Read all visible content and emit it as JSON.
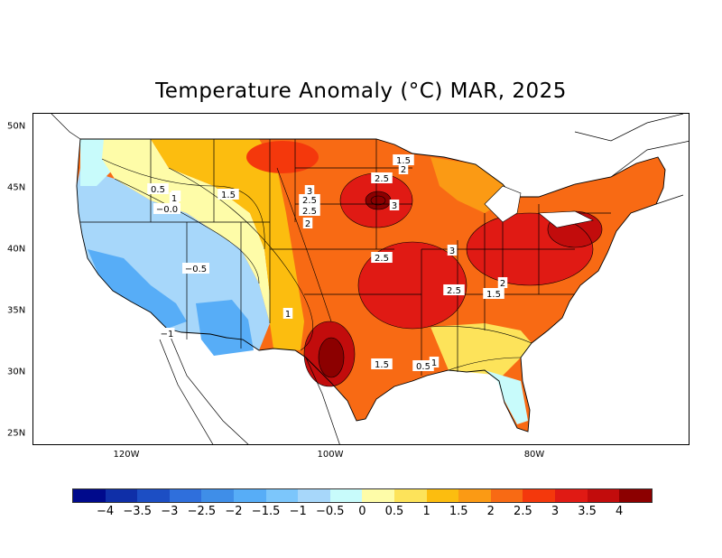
{
  "title": "Temperature Anomaly (°C) MAR, 2025",
  "lat_labels": [
    "50N",
    "45N",
    "40N",
    "35N",
    "30N",
    "25N"
  ],
  "lon_labels": [
    "120W",
    "100W",
    "80W"
  ],
  "colorbar": {
    "colors": [
      "#000a8c",
      "#0f2fa8",
      "#1c4ec4",
      "#2f6fdc",
      "#3f8ee8",
      "#57adf7",
      "#7cc6fb",
      "#a7d7fa",
      "#c8fbfb",
      "#fefca8",
      "#fde35a",
      "#fcbd0f",
      "#fb9a14",
      "#f86a14",
      "#f4380c",
      "#e01a14",
      "#c20c0c",
      "#8c0000"
    ],
    "labels": [
      "−4",
      "−3.5",
      "−3",
      "−2.5",
      "−2",
      "−1.5",
      "−1",
      "−0.5",
      "0",
      "0.5",
      "1",
      "1.5",
      "2",
      "2.5",
      "3",
      "3.5",
      "4"
    ]
  },
  "contour_labels": [
    {
      "text": "1.5"
    },
    {
      "text": "2"
    },
    {
      "text": "2.5"
    },
    {
      "text": "3"
    },
    {
      "text": "2.5"
    },
    {
      "text": "3"
    },
    {
      "text": "2"
    },
    {
      "text": "2.5"
    },
    {
      "text": "3"
    },
    {
      "text": "2.5"
    },
    {
      "text": "2.5"
    },
    {
      "text": "2"
    },
    {
      "text": "1.5"
    },
    {
      "text": "1.5"
    },
    {
      "text": "0.5"
    },
    {
      "text": "1"
    },
    {
      "text": "1"
    },
    {
      "text": "0.5"
    },
    {
      "text": "1"
    },
    {
      "text": "−0.0"
    },
    {
      "text": "1.5"
    },
    {
      "text": "−0.5"
    },
    {
      "text": "1"
    },
    {
      "text": "−1"
    }
  ]
}
